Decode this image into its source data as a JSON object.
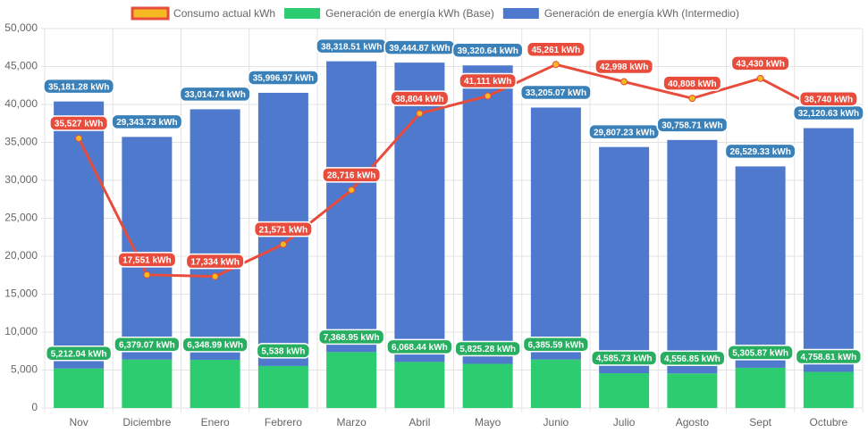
{
  "chart_data": {
    "type": "bar",
    "stacked": true,
    "categories": [
      "Nov",
      "Diciembre",
      "Enero",
      "Febrero",
      "Marzo",
      "Abril",
      "Mayo",
      "Junio",
      "Julio",
      "Agosto",
      "Sept",
      "Octubre"
    ],
    "series": [
      {
        "name": "Consumo actual kWh",
        "type": "line",
        "color": "#e74c3c",
        "point_color": "#f5b921",
        "label_color": "#e74c3c",
        "values": [
          35527,
          17551,
          17334,
          21571,
          28716,
          38804,
          41111,
          45261,
          42998,
          40808,
          43430,
          38740
        ],
        "value_labels": [
          "35,527 kWh",
          "17,551 kWh",
          "17,334 kWh",
          "21,571 kWh",
          "28,716 kWh",
          "38,804 kWh",
          "41,111 kWh",
          "45,261 kWh",
          "42,998 kWh",
          "40,808 kWh",
          "43,430 kWh",
          "38,740 kWh"
        ]
      },
      {
        "name": "Generación de energía kWh (Base)",
        "type": "bar",
        "color": "#2ecc71",
        "label_color": "#27ae60",
        "values": [
          5212.04,
          6379.07,
          6348.99,
          5538,
          7368.95,
          6068.44,
          5825.28,
          6385.59,
          4585.73,
          4556.85,
          5305.87,
          4758.61
        ],
        "value_labels": [
          "5,212.04 kWh",
          "6,379.07 kWh",
          "6,348.99 kWh",
          "5,538 kWh",
          "7,368.95 kWh",
          "6,068.44 kWh",
          "5,825.28 kWh",
          "6,385.59 kWh",
          "4,585.73 kWh",
          "4,556.85 kWh",
          "5,305.87 kWh",
          "4,758.61 kWh"
        ]
      },
      {
        "name": "Generación de energía kWh (Intermedio)",
        "type": "bar",
        "color": "#4e79cc",
        "label_color": "#3a80b9",
        "values": [
          35181.28,
          29343.73,
          33014.74,
          35996.97,
          38318.51,
          39444.87,
          39320.64,
          33205.07,
          29807.23,
          30758.71,
          26529.33,
          32120.63
        ],
        "value_labels": [
          "35,181.28 kWh",
          "29,343.73 kWh",
          "33,014.74 kWh",
          "35,996.97 kWh",
          "38,318.51 kWh",
          "39,444.87 kWh",
          "39,320.64 kWh",
          "33,205.07 kWh",
          "29,807.23 kWh",
          "30,758.71 kWh",
          "26,529.33 kWh",
          "32,120.63 kWh"
        ]
      }
    ],
    "ylim": [
      0,
      50000
    ],
    "yticks": [
      0,
      {
        "value": 5000,
        "label": "5,000"
      },
      {
        "value": 10000,
        "label": "10,000"
      },
      {
        "value": 15000,
        "label": "15,000"
      },
      {
        "value": 20000,
        "label": "20,000"
      },
      {
        "value": 25000,
        "label": "25,000"
      },
      {
        "value": 30000,
        "label": "30,000"
      },
      {
        "value": 35000,
        "label": "35,000"
      },
      {
        "value": 40000,
        "label": "40,000"
      },
      {
        "value": 45000,
        "label": "45,000"
      },
      {
        "value": 50000,
        "label": "50,000"
      }
    ],
    "grid": true,
    "legend": "top"
  }
}
